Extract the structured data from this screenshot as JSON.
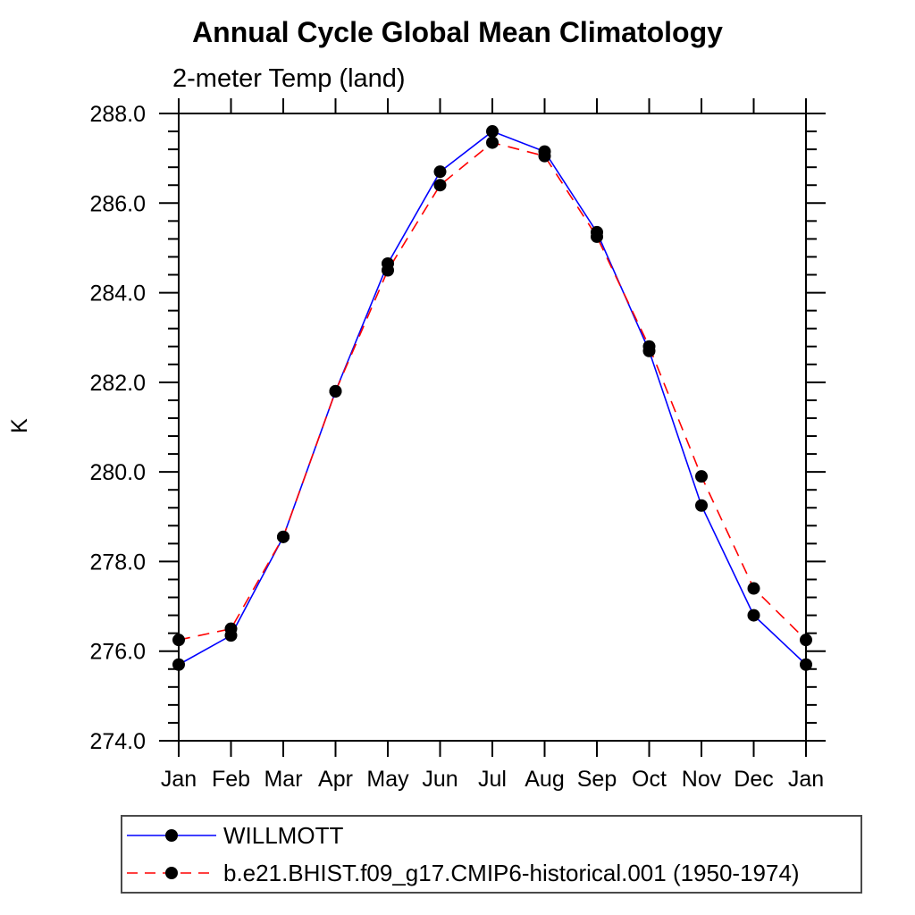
{
  "chart_data": {
    "type": "line",
    "title": "Annual Cycle Global Mean Climatology",
    "subtitle": "2-meter Temp (land)",
    "ylabel": "K",
    "categories": [
      "Jan",
      "Feb",
      "Mar",
      "Apr",
      "May",
      "Jun",
      "Jul",
      "Aug",
      "Sep",
      "Oct",
      "Nov",
      "Dec",
      "Jan"
    ],
    "ylim": [
      274.0,
      288.0
    ],
    "ytick_major_interval": 2.0,
    "ytick_minor_interval": 0.4,
    "ytick_labels": [
      "274.0",
      "276.0",
      "278.0",
      "280.0",
      "282.0",
      "284.0",
      "286.0",
      "288.0"
    ],
    "grid": false,
    "legend_position": "bottom-left",
    "axis_color": "#000000",
    "background_color": "#ffffff",
    "series": [
      {
        "name": "WILLMOTT",
        "color": "#0000ff",
        "line_style": "solid",
        "marker": "filled-circle",
        "marker_color": "#000000",
        "values": [
          275.7,
          276.35,
          278.55,
          281.8,
          284.65,
          286.7,
          287.6,
          287.15,
          285.35,
          282.7,
          279.25,
          276.8,
          275.7
        ]
      },
      {
        "name": "b.e21.BHIST.f09_g17.CMIP6-historical.001 (1950-1974)",
        "color": "#ff0000",
        "line_style": "dashed",
        "marker": "filled-circle",
        "marker_color": "#000000",
        "values": [
          276.25,
          276.5,
          278.55,
          281.8,
          284.5,
          286.4,
          287.35,
          287.05,
          285.25,
          282.8,
          279.9,
          277.4,
          276.25
        ]
      }
    ]
  }
}
